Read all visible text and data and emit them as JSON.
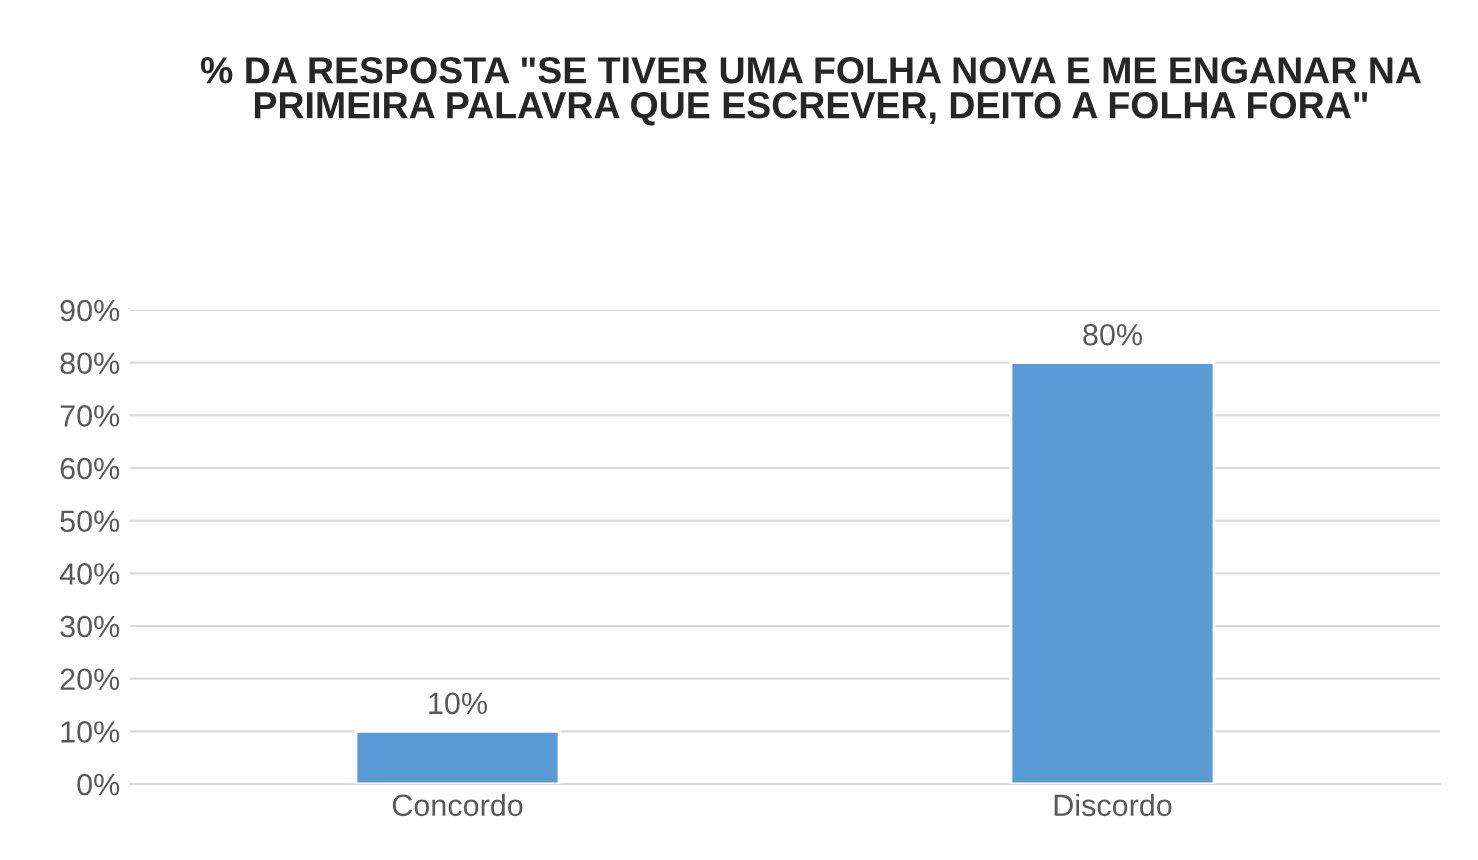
{
  "chart_data": {
    "type": "bar",
    "title": "% DA RESPOSTA \"SE TIVER UMA FOLHA NOVA E ME ENGANAR NA PRIMEIRA PALAVRA QUE ESCREVER, DEITO A FOLHA FORA\"",
    "categories": [
      "Concordo",
      "Discordo"
    ],
    "values": [
      10,
      80
    ],
    "value_labels": [
      "10%",
      "80%"
    ],
    "color": "#5b9bd5",
    "ylim": [
      0,
      90
    ],
    "yticks": [
      {
        "value": 0,
        "label": "0%"
      },
      {
        "value": 10,
        "label": "10%"
      },
      {
        "value": 20,
        "label": "20%"
      },
      {
        "value": 30,
        "label": "30%"
      },
      {
        "value": 40,
        "label": "40%"
      },
      {
        "value": 50,
        "label": "50%"
      },
      {
        "value": 60,
        "label": "60%"
      },
      {
        "value": 70,
        "label": "70%"
      },
      {
        "value": 80,
        "label": "80%"
      },
      {
        "value": 90,
        "label": "90%"
      }
    ],
    "grid": "y"
  }
}
